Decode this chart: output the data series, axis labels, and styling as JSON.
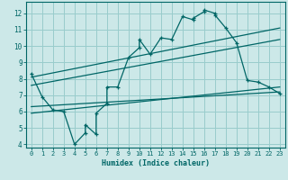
{
  "title": "",
  "xlabel": "Humidex (Indice chaleur)",
  "bg_color": "#cce8e8",
  "grid_color": "#99cccc",
  "line_color": "#006666",
  "xlim": [
    -0.5,
    23.5
  ],
  "ylim": [
    3.8,
    12.7
  ],
  "xticks": [
    0,
    1,
    2,
    3,
    4,
    5,
    6,
    7,
    8,
    9,
    10,
    11,
    12,
    13,
    14,
    15,
    16,
    17,
    18,
    19,
    20,
    21,
    22,
    23
  ],
  "yticks": [
    4,
    5,
    6,
    7,
    8,
    9,
    10,
    11,
    12
  ],
  "curve1_x": [
    0,
    1,
    2,
    3,
    4,
    5,
    5,
    6,
    6,
    7,
    7,
    8,
    9,
    10,
    10,
    11,
    12,
    13,
    14,
    15,
    15,
    16,
    16,
    17,
    17,
    18,
    19,
    20,
    21,
    22,
    23
  ],
  "curve1_y": [
    8.3,
    6.9,
    6.1,
    6.0,
    4.0,
    4.7,
    5.2,
    4.6,
    5.9,
    6.5,
    7.5,
    7.5,
    9.3,
    9.9,
    10.4,
    9.5,
    10.5,
    10.4,
    11.8,
    11.6,
    11.7,
    12.1,
    12.2,
    12.0,
    11.9,
    11.1,
    10.2,
    7.9,
    7.8,
    7.5,
    7.1
  ],
  "line1_x": [
    0,
    23
  ],
  "line1_y": [
    8.1,
    11.1
  ],
  "line2_x": [
    0,
    23
  ],
  "line2_y": [
    7.6,
    10.4
  ],
  "line3_x": [
    0,
    23
  ],
  "line3_y": [
    6.3,
    7.2
  ],
  "line4_x": [
    0,
    23
  ],
  "line4_y": [
    5.9,
    7.5
  ]
}
